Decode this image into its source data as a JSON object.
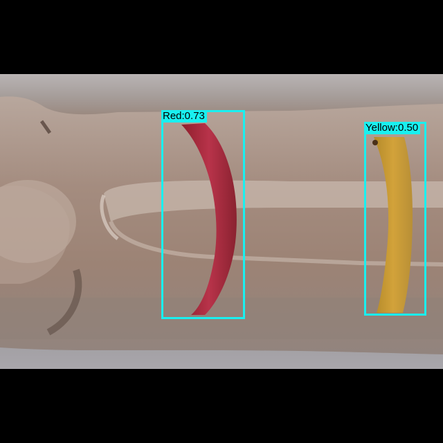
{
  "colors": {
    "letterbox": "#000000",
    "box_outline": "#19f0f0",
    "label_text": "#000000"
  },
  "detections": [
    {
      "label": "Red:0.73",
      "class": "Red",
      "score": 0.73
    },
    {
      "label": "Yellow:0.50",
      "class": "Yellow",
      "score": 0.5
    }
  ]
}
